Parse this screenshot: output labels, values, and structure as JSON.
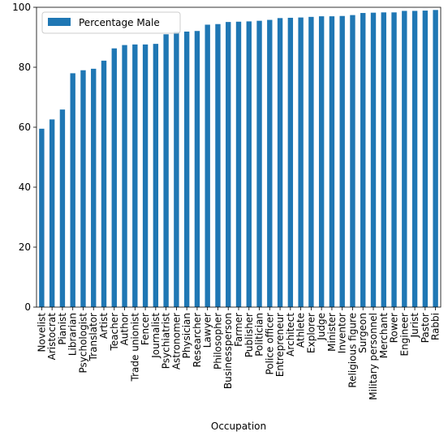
{
  "chart_data": {
    "type": "bar",
    "xlabel": "Occupation",
    "ylabel": "",
    "ylim": [
      0,
      100
    ],
    "yticks": [
      0,
      20,
      40,
      60,
      80,
      100
    ],
    "grid": false,
    "legend_position": "top-left",
    "categories": [
      "Novelist",
      "Aristocrat",
      "Pianist",
      "Librarian",
      "Psychologist",
      "Translator",
      "Artist",
      "Teacher",
      "Author",
      "Trade unionist",
      "Fencer",
      "Journalist",
      "Psychiatrist",
      "Astronomer",
      "Physician",
      "Researcher",
      "Lawyer",
      "Philosopher",
      "Businessperson",
      "Farmer",
      "Publisher",
      "Politician",
      "Police officer",
      "Entrepreneur",
      "Architect",
      "Athlete",
      "Explorer",
      "Judge",
      "Minister",
      "Inventor",
      "Religious figure",
      "Surgeon",
      "Military personnel",
      "Merchant",
      "Rower",
      "Engineer",
      "Jurist",
      "Pastor",
      "Rabbi"
    ],
    "series": [
      {
        "name": "Percentage Male",
        "color": "#1f77b4",
        "values": [
          59.5,
          62.6,
          65.9,
          78.0,
          79.0,
          79.5,
          82.2,
          86.3,
          87.4,
          87.6,
          87.6,
          87.8,
          91.0,
          91.8,
          91.9,
          92.1,
          94.2,
          94.4,
          95.1,
          95.2,
          95.3,
          95.5,
          95.8,
          96.4,
          96.5,
          96.6,
          96.8,
          97.0,
          97.0,
          97.1,
          97.4,
          98.1,
          98.2,
          98.3,
          98.3,
          98.8,
          98.8,
          98.9,
          99.1
        ]
      }
    ]
  }
}
